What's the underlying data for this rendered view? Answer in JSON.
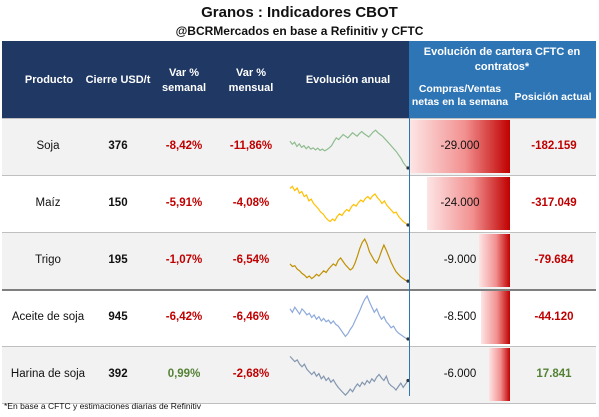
{
  "title": "Granos : Indicadores CBOT",
  "subtitle": "@BCRMercados en base a Refinitiv y CFTC",
  "headers": {
    "producto": "Producto",
    "cierre": "Cierre USD/t",
    "var_semanal_1": "Var %",
    "var_semanal_2": "semanal",
    "var_mensual_1": "Var %",
    "var_mensual_2": "mensual",
    "evolucion": "Evolución anual",
    "cftc_1": "Evolución de cartera CFTC en",
    "cftc_2": "contratos*",
    "compras_1": "Compras/Ventas",
    "compras_2": "netas en la semana",
    "posicion": "Posición actual"
  },
  "colors": {
    "header_dark": "#1f3864",
    "header_blue": "#2e75b6",
    "negative": "#c00000",
    "positive": "#548235",
    "bar": "#c00000"
  },
  "chart_data": {
    "type": "table",
    "columns": [
      "Producto",
      "Cierre USD/t",
      "Var % semanal",
      "Var % mensual",
      "Evolución anual",
      "Compras/Ventas netas en la semana",
      "Posición actual"
    ],
    "rows": [
      {
        "producto": "Soja",
        "cierre": "376",
        "var_semanal": "-8,42%",
        "var_mensual": "-11,86%",
        "compras": "-29.000",
        "posicion": "-182.159",
        "compras_value": -29000,
        "spark_color": "#8fbc8f",
        "spark": [
          0.62,
          0.55,
          0.6,
          0.5,
          0.56,
          0.48,
          0.52,
          0.45,
          0.5,
          0.44,
          0.47,
          0.42,
          0.46,
          0.41,
          0.44,
          0.4,
          0.43,
          0.47,
          0.52,
          0.62,
          0.7,
          0.66,
          0.72,
          0.78,
          0.74,
          0.7,
          0.76,
          0.82,
          0.78,
          0.74,
          0.8,
          0.85,
          0.8,
          0.76,
          0.72,
          0.78,
          0.84,
          0.88,
          0.82,
          0.78,
          0.74,
          0.68,
          0.62,
          0.56,
          0.5,
          0.44,
          0.38,
          0.3,
          0.22,
          0.12,
          0.05,
          0.0
        ]
      },
      {
        "producto": "Maíz",
        "cierre": "150",
        "var_semanal": "-5,91%",
        "var_mensual": "-4,08%",
        "compras": "-24.000",
        "posicion": "-317.049",
        "compras_value": -24000,
        "spark_color": "#ffc000",
        "spark": [
          0.85,
          0.9,
          0.8,
          0.86,
          0.74,
          0.78,
          0.66,
          0.7,
          0.56,
          0.6,
          0.5,
          0.44,
          0.38,
          0.3,
          0.26,
          0.18,
          0.12,
          0.08,
          0.14,
          0.1,
          0.2,
          0.26,
          0.22,
          0.3,
          0.36,
          0.32,
          0.42,
          0.48,
          0.44,
          0.52,
          0.58,
          0.54,
          0.62,
          0.66,
          0.6,
          0.68,
          0.72,
          0.64,
          0.58,
          0.5,
          0.56,
          0.46,
          0.4,
          0.34,
          0.28,
          0.3,
          0.2,
          0.14,
          0.08,
          0.04,
          0.0
        ]
      },
      {
        "producto": "Trigo",
        "cierre": "195",
        "var_semanal": "-1,07%",
        "var_mensual": "-6,54%",
        "compras": "-9.000",
        "posicion": "-79.684",
        "compras_value": -9000,
        "spark_color": "#bf9000",
        "spark": [
          0.42,
          0.36,
          0.38,
          0.3,
          0.26,
          0.2,
          0.16,
          0.1,
          0.14,
          0.08,
          0.12,
          0.18,
          0.14,
          0.2,
          0.26,
          0.22,
          0.3,
          0.36,
          0.42,
          0.38,
          0.5,
          0.56,
          0.48,
          0.4,
          0.34,
          0.28,
          0.32,
          0.44,
          0.6,
          0.78,
          0.92,
          1.0,
          0.88,
          0.7,
          0.6,
          0.5,
          0.44,
          0.56,
          0.72,
          0.86,
          0.74,
          0.6,
          0.46,
          0.34,
          0.24,
          0.18,
          0.12,
          0.08,
          0.04,
          0.02
        ]
      },
      {
        "producto": "Aceite de soja",
        "cierre": "945",
        "var_semanal": "-6,42%",
        "var_mensual": "-6,46%",
        "compras": "-8.500",
        "posicion": "-44.120",
        "compras_value": -8500,
        "spark_color": "#8eaadb",
        "spark": [
          0.7,
          0.62,
          0.74,
          0.66,
          0.58,
          0.7,
          0.64,
          0.56,
          0.6,
          0.5,
          0.56,
          0.46,
          0.52,
          0.42,
          0.48,
          0.4,
          0.44,
          0.36,
          0.42,
          0.34,
          0.3,
          0.22,
          0.14,
          0.06,
          0.12,
          0.22,
          0.3,
          0.42,
          0.54,
          0.66,
          0.8,
          0.92,
          1.0,
          0.86,
          0.74,
          0.62,
          0.7,
          0.56,
          0.46,
          0.52,
          0.4,
          0.34,
          0.26,
          0.3,
          0.2,
          0.14,
          0.1,
          0.06,
          0.02,
          0.0
        ]
      },
      {
        "producto": "Harina de soja",
        "cierre": "392",
        "var_semanal": "0,99%",
        "var_mensual": "-2,68%",
        "compras": "-6.000",
        "posicion": "17.841",
        "compras_value": -6000,
        "spark_color": "#8497b0",
        "spark": [
          0.92,
          0.86,
          0.8,
          0.84,
          0.74,
          0.68,
          0.74,
          0.62,
          0.56,
          0.5,
          0.56,
          0.46,
          0.52,
          0.4,
          0.46,
          0.36,
          0.42,
          0.32,
          0.38,
          0.28,
          0.2,
          0.14,
          0.08,
          0.02,
          0.08,
          0.16,
          0.1,
          0.2,
          0.28,
          0.22,
          0.32,
          0.26,
          0.36,
          0.3,
          0.4,
          0.34,
          0.44,
          0.5,
          0.42,
          0.36,
          0.46,
          0.3,
          0.24,
          0.2,
          0.14,
          0.22,
          0.3,
          0.2,
          0.28,
          0.36
        ]
      }
    ],
    "bar_range": [
      -29000,
      0
    ]
  },
  "footnote": "*En base a CFTC y estimaciones diarias de Refinitiv"
}
